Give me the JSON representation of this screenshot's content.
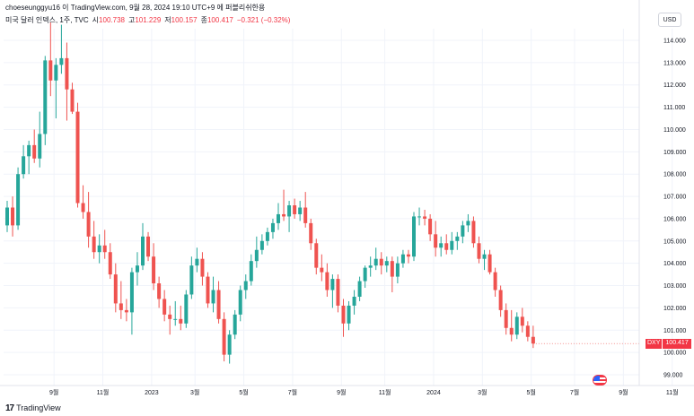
{
  "header": {
    "author_line": "choeseunggyu16 이 TradingView.com, 9월 28, 2024 19:10 UTC+9 에 퍼블리쉬한용"
  },
  "legend": {
    "symbol_name": "미국 달러 인덱스, 1주, TVC",
    "open_label": "시",
    "open_value": "100.738",
    "high_label": "고",
    "high_value": "101.229",
    "low_label": "저",
    "low_value": "100.157",
    "close_label": "종",
    "close_value": "100.417",
    "change": "−0.321 (−0.32%)"
  },
  "price_scale": {
    "currency": "USD"
  },
  "last_price_tag": {
    "symbol": "DXY",
    "value": "100.417"
  },
  "footer": {
    "brand": "TradingView",
    "logo_text": "17"
  },
  "colors": {
    "up": "#26a69a",
    "down": "#ef5350",
    "grid": "#f0f3fa",
    "axis_border": "#e0e3eb",
    "text": "#131722"
  },
  "chart_data": {
    "type": "candlestick",
    "title": "미국 달러 인덱스, 1주, TVC",
    "timeframe": "1W",
    "ylim": [
      98.5,
      115.0
    ],
    "y_ticks": [
      "99.000",
      "100.000",
      "101.000",
      "102.000",
      "103.000",
      "104.000",
      "105.000",
      "106.000",
      "107.000",
      "108.000",
      "109.000",
      "110.000",
      "111.000",
      "112.000",
      "113.000",
      "114.000"
    ],
    "x_ticks": [
      {
        "label": "9월",
        "index": 4
      },
      {
        "label": "11월",
        "index": 13
      },
      {
        "label": "2023",
        "index": 22
      },
      {
        "label": "3월",
        "index": 30
      },
      {
        "label": "5월",
        "index": 39
      },
      {
        "label": "7월",
        "index": 48
      },
      {
        "label": "9월",
        "index": 57
      },
      {
        "label": "11월",
        "index": 65
      },
      {
        "label": "2024",
        "index": 74
      },
      {
        "label": "3월",
        "index": 83
      },
      {
        "label": "5월",
        "index": 92
      },
      {
        "label": "7월",
        "index": 100
      },
      {
        "label": "9월",
        "index": 109
      },
      {
        "label": "11월",
        "index": 118
      }
    ],
    "candles": [
      [
        105.7,
        106.8,
        105.4,
        106.5
      ],
      [
        106.5,
        107.0,
        105.2,
        105.7
      ],
      [
        105.7,
        108.3,
        105.5,
        108.0
      ],
      [
        108.0,
        109.3,
        107.8,
        108.8
      ],
      [
        108.8,
        109.5,
        108.0,
        109.3
      ],
      [
        109.3,
        110.0,
        108.5,
        108.7
      ],
      [
        108.7,
        110.8,
        108.3,
        109.8
      ],
      [
        109.8,
        113.3,
        109.3,
        113.1
      ],
      [
        113.1,
        114.8,
        111.5,
        112.2
      ],
      [
        112.2,
        113.2,
        110.5,
        112.9
      ],
      [
        112.9,
        114.7,
        112.5,
        113.2
      ],
      [
        113.2,
        113.9,
        110.4,
        111.8
      ],
      [
        111.8,
        112.1,
        110.7,
        110.8
      ],
      [
        110.8,
        111.2,
        106.5,
        106.7
      ],
      [
        106.7,
        107.5,
        106.0,
        106.3
      ],
      [
        106.3,
        107.2,
        104.7,
        105.2
      ],
      [
        105.2,
        105.9,
        104.2,
        104.5
      ],
      [
        104.5,
        105.3,
        104.0,
        104.8
      ],
      [
        104.8,
        105.5,
        104.2,
        104.5
      ],
      [
        104.5,
        104.9,
        103.3,
        103.5
      ],
      [
        103.5,
        104.0,
        101.8,
        102.2
      ],
      [
        102.2,
        103.2,
        101.5,
        101.9
      ],
      [
        101.9,
        102.4,
        101.4,
        101.8
      ],
      [
        101.8,
        103.8,
        100.8,
        103.6
      ],
      [
        103.6,
        104.5,
        103.0,
        103.9
      ],
      [
        103.9,
        105.8,
        103.7,
        105.2
      ],
      [
        105.2,
        105.4,
        104.1,
        104.3
      ],
      [
        104.3,
        104.9,
        102.8,
        103.1
      ],
      [
        103.1,
        103.4,
        102.0,
        102.4
      ],
      [
        102.4,
        102.8,
        101.4,
        101.7
      ],
      [
        101.7,
        102.1,
        100.8,
        101.5
      ],
      [
        101.5,
        102.3,
        101.2,
        101.5
      ],
      [
        101.5,
        102.1,
        101.0,
        101.3
      ],
      [
        101.3,
        102.8,
        101.1,
        102.6
      ],
      [
        102.6,
        104.3,
        102.4,
        103.9
      ],
      [
        103.9,
        104.7,
        103.6,
        104.2
      ],
      [
        104.2,
        104.5,
        103.0,
        103.4
      ],
      [
        103.4,
        103.6,
        102.0,
        102.2
      ],
      [
        102.2,
        103.4,
        101.8,
        102.8
      ],
      [
        102.8,
        103.2,
        101.3,
        101.5
      ],
      [
        101.5,
        101.8,
        99.6,
        99.9
      ],
      [
        99.9,
        101.0,
        99.5,
        100.8
      ],
      [
        100.8,
        101.9,
        100.6,
        101.7
      ],
      [
        101.7,
        103.0,
        101.4,
        102.8
      ],
      [
        102.8,
        103.5,
        102.4,
        103.2
      ],
      [
        103.2,
        104.4,
        103.0,
        104.1
      ],
      [
        104.1,
        105.2,
        103.8,
        104.6
      ],
      [
        104.6,
        105.3,
        104.4,
        105.0
      ],
      [
        105.0,
        105.6,
        104.8,
        105.4
      ],
      [
        105.4,
        106.0,
        105.1,
        105.8
      ],
      [
        105.8,
        106.7,
        105.5,
        106.2
      ],
      [
        106.2,
        107.3,
        105.9,
        106.1
      ],
      [
        106.1,
        106.8,
        105.4,
        106.6
      ],
      [
        106.6,
        106.9,
        106.0,
        106.2
      ],
      [
        106.2,
        106.8,
        105.9,
        106.5
      ],
      [
        106.5,
        107.2,
        105.6,
        105.8
      ],
      [
        105.8,
        106.0,
        104.6,
        104.9
      ],
      [
        104.9,
        105.1,
        103.5,
        103.8
      ],
      [
        103.8,
        104.4,
        103.2,
        103.6
      ],
      [
        103.6,
        104.0,
        102.5,
        102.8
      ],
      [
        102.8,
        103.5,
        102.0,
        103.3
      ],
      [
        103.3,
        103.5,
        101.8,
        102.1
      ],
      [
        102.1,
        102.4,
        100.7,
        101.3
      ],
      [
        101.3,
        102.3,
        101.0,
        102.1
      ],
      [
        102.1,
        102.8,
        101.7,
        102.5
      ],
      [
        102.5,
        103.4,
        102.3,
        103.2
      ],
      [
        103.2,
        103.9,
        102.9,
        103.8
      ],
      [
        103.8,
        104.3,
        103.4,
        103.9
      ],
      [
        103.9,
        104.7,
        103.7,
        104.2
      ],
      [
        104.2,
        104.5,
        103.5,
        103.9
      ],
      [
        103.9,
        104.3,
        103.6,
        104.1
      ],
      [
        104.1,
        104.3,
        102.7,
        103.4
      ],
      [
        103.4,
        104.3,
        103.1,
        104.0
      ],
      [
        104.0,
        104.6,
        103.8,
        104.4
      ],
      [
        104.4,
        104.6,
        104.0,
        104.3
      ],
      [
        104.3,
        106.3,
        104.1,
        106.1
      ],
      [
        106.1,
        106.5,
        105.7,
        106.1
      ],
      [
        106.1,
        106.4,
        105.7,
        106.0
      ],
      [
        106.0,
        106.2,
        105.0,
        105.3
      ],
      [
        105.3,
        105.9,
        104.3,
        104.7
      ],
      [
        104.7,
        105.2,
        104.3,
        104.9
      ],
      [
        104.9,
        105.3,
        104.4,
        104.6
      ],
      [
        104.6,
        105.4,
        104.4,
        105.0
      ],
      [
        105.0,
        105.4,
        104.6,
        105.2
      ],
      [
        105.2,
        105.9,
        104.9,
        105.7
      ],
      [
        105.7,
        106.2,
        105.4,
        105.9
      ],
      [
        105.9,
        106.1,
        104.7,
        104.9
      ],
      [
        104.9,
        105.2,
        104.0,
        104.2
      ],
      [
        104.2,
        104.6,
        103.7,
        104.4
      ],
      [
        104.4,
        104.6,
        103.5,
        103.6
      ],
      [
        103.6,
        103.8,
        102.5,
        102.8
      ],
      [
        102.8,
        103.0,
        101.6,
        101.9
      ],
      [
        101.9,
        102.2,
        100.8,
        101.1
      ],
      [
        101.1,
        101.9,
        100.5,
        100.8
      ],
      [
        100.8,
        101.8,
        100.6,
        101.6
      ],
      [
        101.6,
        102.0,
        100.9,
        101.2
      ],
      [
        101.2,
        101.4,
        100.5,
        100.7
      ],
      [
        100.7,
        101.2,
        100.2,
        100.4
      ]
    ]
  }
}
